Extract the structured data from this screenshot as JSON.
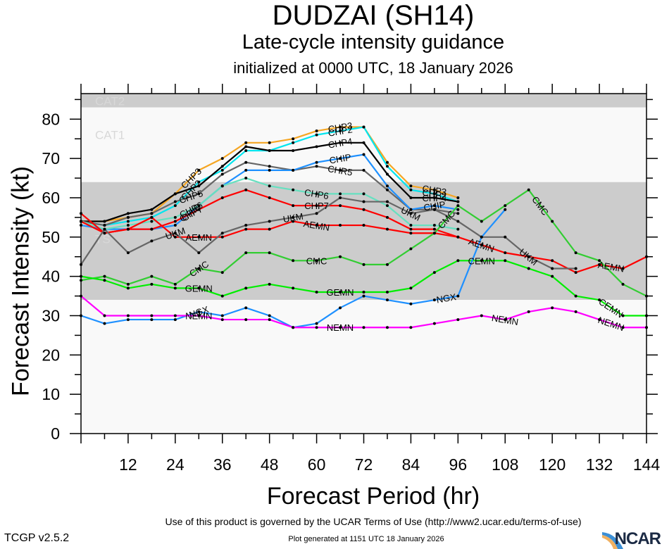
{
  "header": {
    "title": "DUDZAI (SH14)",
    "subtitle": "Late-cycle intensity guidance",
    "init_line": "initialized at 0000 UTC, 18 January 2026"
  },
  "footer": {
    "terms": "Use of this product is governed by the UCAR Terms of Use (http://www2.ucar.edu/terms-of-use)",
    "generated": "Plot generated at 1151 UTC   18 January 2026",
    "version": "TCGP v2.5.2",
    "logo_text": "NCAR"
  },
  "chart_data": {
    "type": "line",
    "title": "DUDZAI (SH14)",
    "subtitle": "Late-cycle intensity guidance",
    "xlabel": "Forecast Period (hr)",
    "ylabel": "Forecast Intensity (kt)",
    "xlim": [
      0,
      144
    ],
    "ylim": [
      0,
      85
    ],
    "xticks": [
      12,
      24,
      36,
      48,
      60,
      72,
      84,
      96,
      108,
      120,
      132,
      144
    ],
    "yticks": [
      0,
      10,
      20,
      30,
      40,
      50,
      60,
      70,
      80
    ],
    "grid": false,
    "legend": "inline labels on lines",
    "bands": [
      {
        "label": "TS",
        "from": 34,
        "to": 64,
        "color": "#cccccc"
      },
      {
        "label": "CAT1",
        "from": 64,
        "to": 83,
        "color": "#f9f9f9"
      },
      {
        "label": "CAT2",
        "from": 83,
        "to": 96,
        "color": "#cccccc"
      },
      {
        "label": "",
        "from": 0,
        "to": 34,
        "color": "#f9f9f9"
      }
    ],
    "series": [
      {
        "name": "CHP3",
        "color": "#f5a623",
        "label_at": 66,
        "points": [
          [
            0,
            54
          ],
          [
            6,
            54
          ],
          [
            12,
            55
          ],
          [
            18,
            56
          ],
          [
            24,
            61
          ],
          [
            30,
            67
          ],
          [
            36,
            70
          ],
          [
            42,
            74
          ],
          [
            48,
            74
          ],
          [
            54,
            75
          ],
          [
            60,
            77
          ],
          [
            66,
            78
          ],
          [
            72,
            78
          ],
          [
            78,
            69
          ],
          [
            84,
            63
          ],
          [
            90,
            62
          ],
          [
            96,
            60
          ]
        ]
      },
      {
        "name": "CHP2",
        "color": "#00e5ee",
        "label_at": 66,
        "points": [
          [
            0,
            54
          ],
          [
            6,
            53
          ],
          [
            12,
            54
          ],
          [
            18,
            55
          ],
          [
            24,
            58
          ],
          [
            30,
            64
          ],
          [
            36,
            67
          ],
          [
            42,
            72
          ],
          [
            48,
            72
          ],
          [
            54,
            74
          ],
          [
            60,
            76
          ],
          [
            66,
            77
          ],
          [
            72,
            78
          ],
          [
            78,
            68
          ],
          [
            84,
            62
          ],
          [
            90,
            61
          ],
          [
            96,
            59
          ]
        ]
      },
      {
        "name": "CHP4",
        "color": "#000000",
        "label_at": 66,
        "points": [
          [
            0,
            54
          ],
          [
            6,
            54
          ],
          [
            12,
            56
          ],
          [
            18,
            57
          ],
          [
            24,
            61
          ],
          [
            30,
            63
          ],
          [
            36,
            68
          ],
          [
            42,
            73
          ],
          [
            48,
            72
          ],
          [
            54,
            72
          ],
          [
            60,
            73
          ],
          [
            66,
            74
          ],
          [
            72,
            74
          ],
          [
            78,
            66
          ],
          [
            84,
            60
          ],
          [
            90,
            60
          ],
          [
            96,
            59
          ]
        ]
      },
      {
        "name": "CHR5",
        "color": "#666666",
        "label_at": 66,
        "points": [
          [
            0,
            54
          ],
          [
            6,
            53
          ],
          [
            12,
            55
          ],
          [
            18,
            56
          ],
          [
            24,
            59
          ],
          [
            30,
            61
          ],
          [
            36,
            66
          ],
          [
            42,
            69
          ],
          [
            48,
            68
          ],
          [
            54,
            67
          ],
          [
            60,
            68
          ],
          [
            66,
            67
          ],
          [
            72,
            67
          ],
          [
            78,
            62
          ],
          [
            84,
            57
          ],
          [
            90,
            57
          ],
          [
            96,
            56
          ]
        ]
      },
      {
        "name": "CHIP",
        "color": "#1e90ff",
        "label_at": 66,
        "points": [
          [
            0,
            53
          ],
          [
            6,
            52
          ],
          [
            12,
            52
          ],
          [
            18,
            52
          ],
          [
            24,
            53
          ],
          [
            30,
            58
          ],
          [
            36,
            63
          ],
          [
            42,
            67
          ],
          [
            48,
            67
          ],
          [
            54,
            67
          ],
          [
            60,
            69
          ],
          [
            66,
            70
          ],
          [
            72,
            71
          ],
          [
            78,
            63
          ],
          [
            84,
            57
          ],
          [
            90,
            58
          ],
          [
            96,
            57
          ]
        ]
      },
      {
        "name": "CHP6",
        "color": "#66e0c0",
        "label_at": 60,
        "points": [
          [
            0,
            54
          ],
          [
            6,
            52
          ],
          [
            12,
            53
          ],
          [
            18,
            54
          ],
          [
            24,
            55
          ],
          [
            30,
            58
          ],
          [
            36,
            63
          ],
          [
            42,
            65
          ],
          [
            48,
            63
          ],
          [
            54,
            62
          ],
          [
            60,
            61
          ],
          [
            66,
            61
          ],
          [
            72,
            61
          ],
          [
            78,
            58
          ],
          [
            84,
            53
          ],
          [
            90,
            53
          ],
          [
            96,
            52
          ]
        ]
      },
      {
        "name": "CHP7",
        "color": "#ff0000",
        "label_at": 60,
        "points": [
          [
            0,
            54
          ],
          [
            6,
            51
          ],
          [
            12,
            52
          ],
          [
            18,
            52
          ],
          [
            24,
            54
          ],
          [
            30,
            57
          ],
          [
            36,
            60
          ],
          [
            42,
            62
          ],
          [
            48,
            60
          ],
          [
            54,
            58
          ],
          [
            60,
            58
          ],
          [
            66,
            58
          ],
          [
            72,
            57
          ],
          [
            78,
            55
          ],
          [
            84,
            52
          ],
          [
            90,
            52
          ],
          [
            96,
            50
          ]
        ]
      },
      {
        "name": "AEMN",
        "color": "#ff0000",
        "label_at": 60,
        "points": [
          [
            0,
            56
          ],
          [
            6,
            51
          ],
          [
            12,
            52
          ],
          [
            18,
            55
          ],
          [
            24,
            50
          ],
          [
            30,
            50
          ],
          [
            36,
            50
          ],
          [
            42,
            52
          ],
          [
            48,
            52
          ],
          [
            54,
            54
          ],
          [
            60,
            53
          ],
          [
            66,
            53
          ],
          [
            72,
            53
          ],
          [
            78,
            52
          ],
          [
            84,
            51
          ],
          [
            90,
            51
          ],
          [
            96,
            50
          ],
          [
            102,
            48
          ],
          [
            108,
            46
          ],
          [
            114,
            45
          ],
          [
            120,
            44
          ],
          [
            126,
            41
          ],
          [
            132,
            43
          ],
          [
            138,
            42
          ],
          [
            144,
            45
          ]
        ]
      },
      {
        "name": "UKM",
        "color": "#666666",
        "label_at": 54,
        "points": [
          [
            0,
            43
          ],
          [
            6,
            52
          ],
          [
            12,
            46
          ],
          [
            18,
            49
          ],
          [
            24,
            51
          ],
          [
            30,
            46
          ],
          [
            36,
            51
          ],
          [
            42,
            53
          ],
          [
            48,
            54
          ],
          [
            54,
            55
          ],
          [
            60,
            56
          ],
          [
            66,
            60
          ],
          [
            72,
            59
          ],
          [
            78,
            59
          ],
          [
            84,
            56
          ],
          [
            90,
            57
          ],
          [
            96,
            54
          ],
          [
            102,
            50
          ],
          [
            108,
            50
          ],
          [
            114,
            45
          ],
          [
            120,
            42
          ],
          [
            126,
            42
          ]
        ]
      },
      {
        "name": "CMC",
        "color": "#32cd32",
        "label_at": 60,
        "points": [
          [
            0,
            39
          ],
          [
            6,
            40
          ],
          [
            12,
            38
          ],
          [
            18,
            40
          ],
          [
            24,
            38
          ],
          [
            30,
            42
          ],
          [
            36,
            41
          ],
          [
            42,
            46
          ],
          [
            48,
            46
          ],
          [
            54,
            44
          ],
          [
            60,
            44
          ],
          [
            66,
            45
          ],
          [
            72,
            43
          ],
          [
            78,
            43
          ],
          [
            84,
            47
          ],
          [
            90,
            51
          ],
          [
            96,
            58
          ],
          [
            102,
            54
          ],
          [
            108,
            58
          ],
          [
            114,
            62
          ],
          [
            120,
            54
          ],
          [
            126,
            46
          ],
          [
            132,
            44
          ],
          [
            138,
            38
          ],
          [
            144,
            35
          ]
        ]
      },
      {
        "name": "GEMN",
        "color": "#00ee00",
        "label_at": 66,
        "points": [
          [
            0,
            40
          ],
          [
            6,
            39
          ],
          [
            12,
            37
          ],
          [
            18,
            38
          ],
          [
            24,
            37
          ],
          [
            30,
            37
          ],
          [
            36,
            35
          ],
          [
            42,
            37
          ],
          [
            48,
            38
          ],
          [
            54,
            37
          ],
          [
            60,
            36
          ],
          [
            66,
            36
          ],
          [
            72,
            36
          ],
          [
            78,
            36
          ],
          [
            84,
            37
          ],
          [
            90,
            41
          ],
          [
            96,
            44
          ],
          [
            102,
            44
          ],
          [
            108,
            44
          ],
          [
            114,
            42
          ],
          [
            120,
            40
          ],
          [
            126,
            35
          ],
          [
            132,
            34
          ],
          [
            138,
            30
          ],
          [
            144,
            30
          ]
        ]
      },
      {
        "name": "NGX",
        "color": "#1e90ff",
        "label_at": 30,
        "points": [
          [
            0,
            30
          ],
          [
            6,
            28
          ],
          [
            12,
            29
          ],
          [
            18,
            29
          ],
          [
            24,
            29
          ],
          [
            30,
            31
          ],
          [
            36,
            30
          ],
          [
            42,
            32
          ],
          [
            48,
            30
          ],
          [
            54,
            27
          ],
          [
            60,
            28
          ],
          [
            66,
            32
          ],
          [
            72,
            35
          ],
          [
            78,
            34
          ],
          [
            84,
            33
          ],
          [
            90,
            34
          ],
          [
            96,
            35
          ],
          [
            102,
            50
          ],
          [
            108,
            57
          ]
        ]
      },
      {
        "name": "NEMN",
        "color": "#ff00ff",
        "label_at": 30,
        "points": [
          [
            0,
            35
          ],
          [
            6,
            30
          ],
          [
            12,
            30
          ],
          [
            18,
            30
          ],
          [
            24,
            30
          ],
          [
            30,
            30
          ],
          [
            36,
            29
          ],
          [
            42,
            29
          ],
          [
            48,
            29
          ],
          [
            54,
            27
          ],
          [
            60,
            27
          ],
          [
            66,
            27
          ],
          [
            72,
            27
          ],
          [
            78,
            27
          ],
          [
            84,
            27
          ],
          [
            90,
            28
          ],
          [
            96,
            29
          ],
          [
            102,
            30
          ],
          [
            108,
            29
          ],
          [
            114,
            31
          ],
          [
            120,
            32
          ],
          [
            126,
            31
          ],
          [
            132,
            29
          ],
          [
            138,
            27
          ],
          [
            144,
            27
          ]
        ]
      }
    ],
    "extra_labels": [
      {
        "series": "UKM",
        "at": 24,
        "text": "UKM"
      },
      {
        "series": "AEMN",
        "at": 30,
        "text": "AEMN"
      },
      {
        "series": "CMC",
        "at": 30,
        "text": "CMC"
      },
      {
        "series": "GEMN",
        "at": 30,
        "text": "GEMN"
      },
      {
        "series": "NGX",
        "at": 93,
        "text": "NGX"
      },
      {
        "series": "NEMN",
        "at": 66,
        "text": "NEMN"
      },
      {
        "series": "CMC",
        "at": 117,
        "text": "CMC"
      },
      {
        "series": "GEMN",
        "at": 102,
        "text": "CEMN"
      },
      {
        "series": "GEMN",
        "at": 135,
        "text": "CEMN"
      },
      {
        "series": "NEMN",
        "at": 108,
        "text": "NEMN"
      },
      {
        "series": "NEMN",
        "at": 135,
        "text": "NEMN"
      },
      {
        "series": "AEMN",
        "at": 102,
        "text": "AEMN"
      },
      {
        "series": "AEMN",
        "at": 135,
        "text": "AEMN"
      },
      {
        "series": "UKM",
        "at": 114,
        "text": "UKM"
      },
      {
        "series": "UKM",
        "at": 84,
        "text": "UKM"
      },
      {
        "series": "CHIP",
        "at": 90,
        "text": "CHIP"
      },
      {
        "series": "CHP4",
        "at": 90,
        "text": "CHP4"
      },
      {
        "series": "CHP2",
        "at": 90,
        "text": "CHP2"
      },
      {
        "series": "CHP3",
        "at": 90,
        "text": "CHP3"
      },
      {
        "series": "CMC",
        "at": 93,
        "text": "CMC"
      },
      {
        "series": "CHP3",
        "at": 28,
        "text": "CHP3"
      },
      {
        "series": "CHP2",
        "at": 28,
        "text": "CHP2"
      },
      {
        "series": "CHR5",
        "at": 28,
        "text": "CHP5"
      },
      {
        "series": "CHIP",
        "at": 28,
        "text": "CHIP"
      },
      {
        "series": "CHP6",
        "at": 28,
        "text": "CHP6"
      },
      {
        "series": "CHP7",
        "at": 28,
        "text": "CHP7"
      }
    ]
  }
}
